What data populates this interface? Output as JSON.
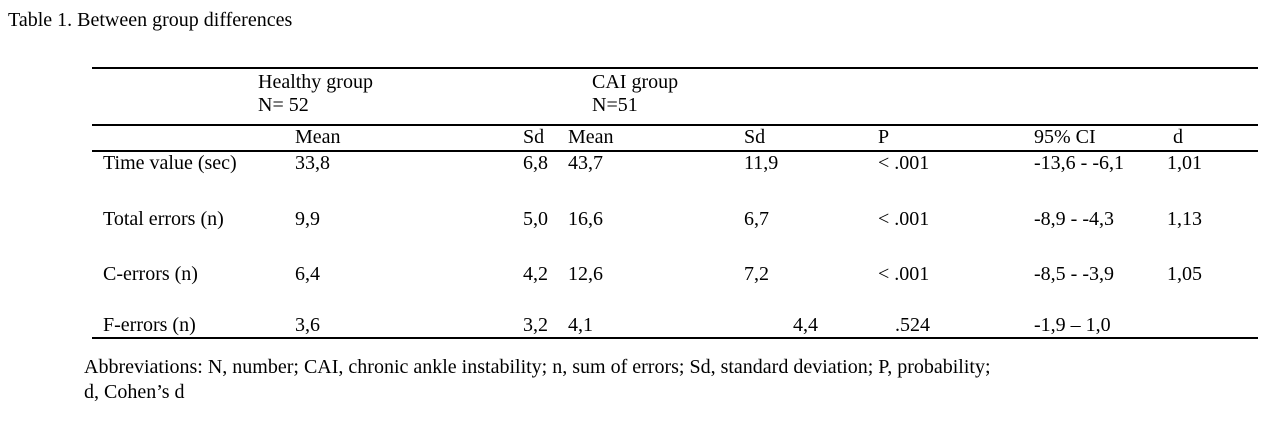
{
  "title": "Table 1. Between group differences",
  "table": {
    "group_headers": [
      {
        "label": "Healthy group",
        "n": "N= 52"
      },
      {
        "label": "CAI group",
        "n": "N=51"
      }
    ],
    "column_headers": {
      "healthy_mean": "Mean",
      "healthy_sd": "Sd",
      "cai_mean": "Mean",
      "cai_sd": "Sd",
      "p": "P",
      "ci_95": "95% CI",
      "d": "d"
    },
    "rows": [
      {
        "label": "Time value (sec)",
        "healthy_mean": "33,8",
        "healthy_sd": "6,8",
        "cai_mean": "43,7",
        "cai_sd": "11,9",
        "p": "< .001",
        "ci_95": "-13,6 - -6,1",
        "d": "1,01"
      },
      {
        "label": "Total errors (n)",
        "healthy_mean": "9,9",
        "healthy_sd": "5,0",
        "cai_mean": "16,6",
        "cai_sd": "6,7",
        "p": "< .001",
        "ci_95": "-8,9 - -4,3",
        "d": "1,13"
      },
      {
        "label": "C-errors (n)",
        "healthy_mean": "6,4",
        "healthy_sd": "4,2",
        "cai_mean": "12,6",
        "cai_sd": "7,2",
        "p": "< .001",
        "ci_95": "-8,5 - -3,9",
        "d": "1,05"
      },
      {
        "label": "F-errors (n)",
        "healthy_mean": "3,6",
        "healthy_sd": "3,2",
        "cai_mean": "4,1",
        "cai_sd": "4,4",
        "p": ".524",
        "ci_95": "-1,9 – 1,0",
        "d": ""
      }
    ]
  },
  "footnote": {
    "line1": "Abbreviations: N, number; CAI, chronic ankle instability; n, sum of errors; Sd, standard deviation; P, probability;",
    "line2": "d, Cohen’s d"
  }
}
